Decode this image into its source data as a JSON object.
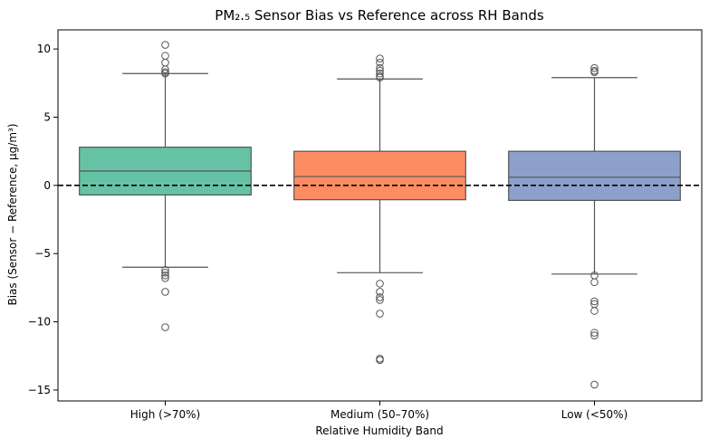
{
  "chart_data": {
    "type": "box",
    "title": "PM₂.₅ Sensor Bias vs Reference across RH Bands",
    "xlabel": "Relative Humidity Band",
    "ylabel": "Bias (Sensor − Reference, µg/m³)",
    "ylim": [
      -15.8,
      11.4
    ],
    "yticks": [
      10,
      5,
      0,
      -5,
      -10,
      -15
    ],
    "ytick_labels": [
      "10",
      "5",
      "0",
      "−5",
      "−10",
      "−15"
    ],
    "grid": false,
    "reference_line": {
      "y": 0,
      "style": "dashed",
      "color": "#000000"
    },
    "categories": [
      "High (>70%)",
      "Medium (50–70%)",
      "Low (<50%)"
    ],
    "boxes": [
      {
        "category": "High (>70%)",
        "color": "#66c2a5",
        "whisker_low": -6.0,
        "q1": -0.7,
        "median": 1.05,
        "q3": 2.8,
        "whisker_high": 8.2,
        "outliers": [
          10.3,
          9.5,
          9.0,
          8.5,
          8.3,
          8.2,
          -6.2,
          -6.4,
          -6.6,
          -6.8,
          -7.8,
          -10.4
        ]
      },
      {
        "category": "Medium (50–70%)",
        "color": "#fc8d62",
        "whisker_low": -6.4,
        "q1": -1.05,
        "median": 0.65,
        "q3": 2.5,
        "whisker_high": 7.8,
        "outliers": [
          9.3,
          9.0,
          8.6,
          8.4,
          8.2,
          8.0,
          7.9,
          -7.2,
          -7.8,
          -8.2,
          -8.4,
          -9.4,
          -12.7,
          -12.8
        ]
      },
      {
        "category": "Low (<50%)",
        "color": "#8da0cb",
        "whisker_low": -6.5,
        "q1": -1.1,
        "median": 0.6,
        "q3": 2.5,
        "whisker_high": 7.9,
        "outliers": [
          8.6,
          8.4,
          8.3,
          -6.6,
          -7.1,
          -8.5,
          -8.7,
          -9.2,
          -10.8,
          -11.0,
          -14.6
        ]
      }
    ]
  }
}
